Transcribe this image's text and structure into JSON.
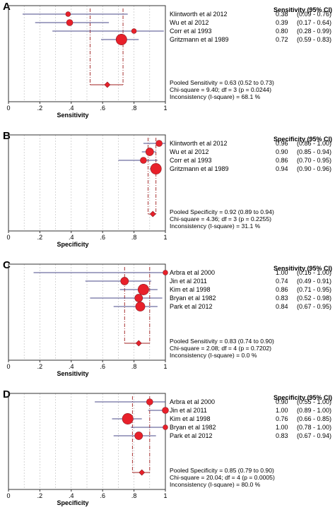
{
  "chart_data": [
    {
      "panel_label": "A",
      "type": "forest",
      "xlabel": "Sensitivity",
      "xlim": [
        0,
        1
      ],
      "x_ticks": [
        "0",
        ".2",
        ".4",
        ".6",
        ".8",
        "1"
      ],
      "column_header": "Sensitivity (95% CI)",
      "studies": [
        {
          "name": "Klintworth et al 2012",
          "value": 0.38,
          "value_label": "0.38",
          "ci": [
            0.09,
            0.76
          ],
          "ci_label": "(0.09 - 0.76)",
          "weight": 1
        },
        {
          "name": "Wu et al 2012",
          "value": 0.39,
          "value_label": "0.39",
          "ci": [
            0.17,
            0.64
          ],
          "ci_label": "(0.17 - 0.64)",
          "weight": 2
        },
        {
          "name": "Corr et al 1993",
          "value": 0.8,
          "value_label": "0.80",
          "ci": [
            0.28,
            0.99
          ],
          "ci_label": "(0.28 - 0.99)",
          "weight": 1
        },
        {
          "name": "Gritzmann et al 1989",
          "value": 0.72,
          "value_label": "0.72",
          "ci": [
            0.59,
            0.83
          ],
          "ci_label": "(0.59 - 0.83)",
          "weight": 5
        }
      ],
      "pooled": {
        "value": 0.63,
        "ci": [
          0.52,
          0.73
        ]
      },
      "summary_lines": [
        "Pooled Sensitivity = 0.63 (0.52 to 0.73)",
        "Chi-square = 9.40; df =  3 (p = 0.0244)",
        "Inconsistency (I-square) = 68.1 %"
      ]
    },
    {
      "panel_label": "B",
      "type": "forest",
      "xlabel": "Specificity",
      "xlim": [
        0,
        1
      ],
      "x_ticks": [
        "0",
        ".2",
        ".4",
        ".6",
        ".8",
        "1"
      ],
      "column_header": "Specificity (95% CI)",
      "studies": [
        {
          "name": "Klintworth et al 2012",
          "value": 0.96,
          "value_label": "0.96",
          "ci": [
            0.86,
            1.0
          ],
          "ci_label": "(0.86 - 1.00)",
          "weight": 2
        },
        {
          "name": "Wu et al 2012",
          "value": 0.9,
          "value_label": "0.90",
          "ci": [
            0.85,
            0.94
          ],
          "ci_label": "(0.85 - 0.94)",
          "weight": 3
        },
        {
          "name": "Corr et al 1993",
          "value": 0.86,
          "value_label": "0.86",
          "ci": [
            0.7,
            0.95
          ],
          "ci_label": "(0.70 - 0.95)",
          "weight": 2
        },
        {
          "name": "Gritzmann et al 1989",
          "value": 0.94,
          "value_label": "0.94",
          "ci": [
            0.9,
            0.96
          ],
          "ci_label": "(0.90 - 0.96)",
          "weight": 5
        }
      ],
      "pooled": {
        "value": 0.92,
        "ci": [
          0.89,
          0.94
        ]
      },
      "summary_lines": [
        "Pooled Specificity = 0.92 (0.89 to 0.94)",
        "Chi-square = 4.36; df =  3 (p = 0.2255)",
        "Inconsistency (I-square) = 31.1 %"
      ]
    },
    {
      "panel_label": "C",
      "type": "forest",
      "xlabel": "Sensitivity",
      "xlim": [
        0,
        1
      ],
      "x_ticks": [
        "0",
        ".2",
        ".4",
        ".6",
        ".8",
        "1"
      ],
      "column_header": "Sensitivity (95% CI)",
      "studies": [
        {
          "name": "Arbra et al 2000",
          "value": 1.0,
          "value_label": "1.00",
          "ci": [
            0.16,
            1.0
          ],
          "ci_label": "(0.16 - 1.00)",
          "weight": 1
        },
        {
          "name": "Jin et al 2011",
          "value": 0.74,
          "value_label": "0.74",
          "ci": [
            0.49,
            0.91
          ],
          "ci_label": "(0.49 - 0.91)",
          "weight": 3
        },
        {
          "name": "Kim et al 1998",
          "value": 0.86,
          "value_label": "0.86",
          "ci": [
            0.71,
            0.95
          ],
          "ci_label": "(0.71 - 0.95)",
          "weight": 5
        },
        {
          "name": "Bryan et al 1982",
          "value": 0.83,
          "value_label": "0.83",
          "ci": [
            0.52,
            0.98
          ],
          "ci_label": "(0.52 - 0.98)",
          "weight": 3
        },
        {
          "name": "Park et al 2012",
          "value": 0.84,
          "value_label": "0.84",
          "ci": [
            0.67,
            0.95
          ],
          "ci_label": "(0.67 - 0.95)",
          "weight": 4
        }
      ],
      "pooled": {
        "value": 0.83,
        "ci": [
          0.74,
          0.9
        ]
      },
      "summary_lines": [
        "Pooled Sensitivity = 0.83 (0.74 to 0.90)",
        "Chi-square = 2.08; df =  4 (p = 0.7202)",
        "Inconsistency (I-square) = 0.0 %"
      ]
    },
    {
      "panel_label": "D",
      "type": "forest",
      "xlabel": "Specificity",
      "xlim": [
        0,
        1
      ],
      "x_ticks": [
        "0",
        ".2",
        ".4",
        ".6",
        ".8",
        "1"
      ],
      "column_header": "Specificity (95% CI)",
      "studies": [
        {
          "name": "Arbra et al 2000",
          "value": 0.9,
          "value_label": "0.90",
          "ci": [
            0.55,
            1.0
          ],
          "ci_label": "(0.55 - 1.00)",
          "weight": 2
        },
        {
          "name": "Jin et al 2011",
          "value": 1.0,
          "value_label": "1.00",
          "ci": [
            0.89,
            1.0
          ],
          "ci_label": "(0.89 - 1.00)",
          "weight": 2
        },
        {
          "name": "Kim et al 1998",
          "value": 0.76,
          "value_label": "0.76",
          "ci": [
            0.66,
            0.85
          ],
          "ci_label": "(0.66 - 0.85)",
          "weight": 5
        },
        {
          "name": "Bryan et al 1982",
          "value": 1.0,
          "value_label": "1.00",
          "ci": [
            0.78,
            1.0
          ],
          "ci_label": "(0.78 - 1.00)",
          "weight": 1
        },
        {
          "name": "Park et al 2012",
          "value": 0.83,
          "value_label": "0.83",
          "ci": [
            0.67,
            0.94
          ],
          "ci_label": "(0.67 - 0.94)",
          "weight": 3
        }
      ],
      "pooled": {
        "value": 0.85,
        "ci": [
          0.79,
          0.9
        ]
      },
      "summary_lines": [
        "Pooled Specificity = 0.85 (0.79 to 0.90)",
        "Chi-square = 20.04; df =  4 (p = 0.0005)",
        "Inconsistency (I-square) = 80.0 %"
      ]
    }
  ],
  "colors": {
    "marker_fill": "#e8202a",
    "marker_stroke": "#8a1a20",
    "ci_line": "#4a4a8a",
    "pooled_line": "#a02020",
    "frame": "#333333",
    "grid": "#bbbbbb",
    "text": "#000000"
  }
}
